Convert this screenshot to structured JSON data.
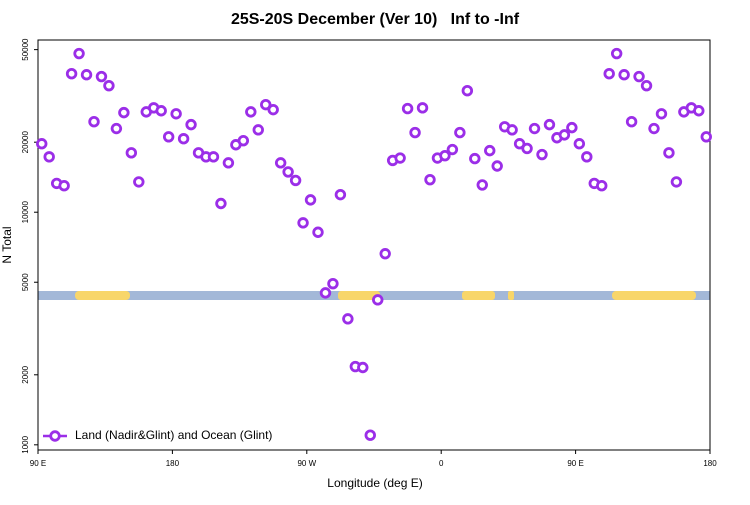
{
  "chart_data": {
    "type": "scatter",
    "title": "25S-20S December (Ver 10)   Inf to -Inf",
    "x_label": "Longitude (deg E)",
    "y_label": "N Total",
    "log_y": true,
    "legend": "bottom-left",
    "xlim": [
      90,
      540
    ],
    "xticks": [
      {
        "value": 90,
        "label": "90 E"
      },
      180,
      {
        "value": 270,
        "label": "90 W"
      },
      {
        "value": 360,
        "label": "0"
      },
      {
        "value": 450,
        "label": "90 E"
      },
      {
        "value": 540,
        "label": "180"
      }
    ],
    "ylim": [
      950,
      55000
    ],
    "yticks": [
      1000,
      2000,
      5000,
      10000,
      20000,
      50000
    ],
    "series": [
      {
        "name": "Land (Nadir&Glint) and Ocean (Glint)",
        "color": "#9b2ee8",
        "x": [
          92.5,
          97.5,
          102.5,
          107.5,
          112.5,
          117.5,
          122.5,
          127.5,
          132.5,
          137.5,
          142.5,
          147.5,
          152.5,
          157.5,
          162.5,
          167.5,
          172.5,
          177.5,
          182.5,
          187.5,
          192.5,
          197.5,
          202.5,
          207.5,
          212.5,
          217.5,
          222.5,
          227.5,
          232.5,
          237.5,
          242.5,
          247.5,
          252.5,
          257.5,
          262.5,
          267.5,
          272.5,
          277.5,
          282.5,
          287.5,
          292.5,
          297.5,
          302.5,
          307.5,
          312.5,
          317.5,
          322.5,
          327.5,
          332.5,
          337.5,
          342.5,
          347.5,
          352.5,
          357.5,
          362.5,
          367.5,
          372.5,
          377.5,
          382.5,
          387.5,
          392.5,
          397.5,
          402.5,
          407.5,
          412.5,
          417.5,
          422.5,
          427.5,
          432.5,
          437.5,
          442.5,
          447.5,
          452.5,
          457.5,
          462.5,
          467.5,
          472.5,
          477.5,
          482.5,
          487.5,
          492.5,
          497.5,
          502.5,
          507.5,
          512.5,
          517.5,
          522.5,
          527.5,
          532.5,
          537.5
        ],
        "values": [
          19700,
          17300,
          13300,
          13000,
          39400,
          48100,
          39000,
          24500,
          38300,
          35000,
          22900,
          26800,
          18000,
          13500,
          27000,
          28100,
          27300,
          21100,
          26500,
          20700,
          23800,
          18000,
          17300,
          17300,
          10900,
          16300,
          19500,
          20300,
          27000,
          22600,
          29000,
          27600,
          16300,
          14900,
          13700,
          9000,
          11300,
          8200,
          4500,
          4930,
          11900,
          3480,
          2170,
          2150,
          1100,
          4200,
          6630,
          16700,
          17100,
          27900,
          22000,
          28100,
          13800,
          17100,
          17500,
          18600,
          22000,
          33300,
          17000,
          13100,
          18400,
          15800,
          23300,
          22600,
          19700,
          18800,
          22900,
          17700,
          23800,
          20900,
          21500,
          23100,
          19700,
          17300,
          13300,
          13000,
          39400,
          48100,
          39000,
          24500,
          38300,
          35000,
          22900,
          26500,
          18000,
          13500,
          27000,
          28100,
          27300,
          21100
        ]
      }
    ]
  }
}
